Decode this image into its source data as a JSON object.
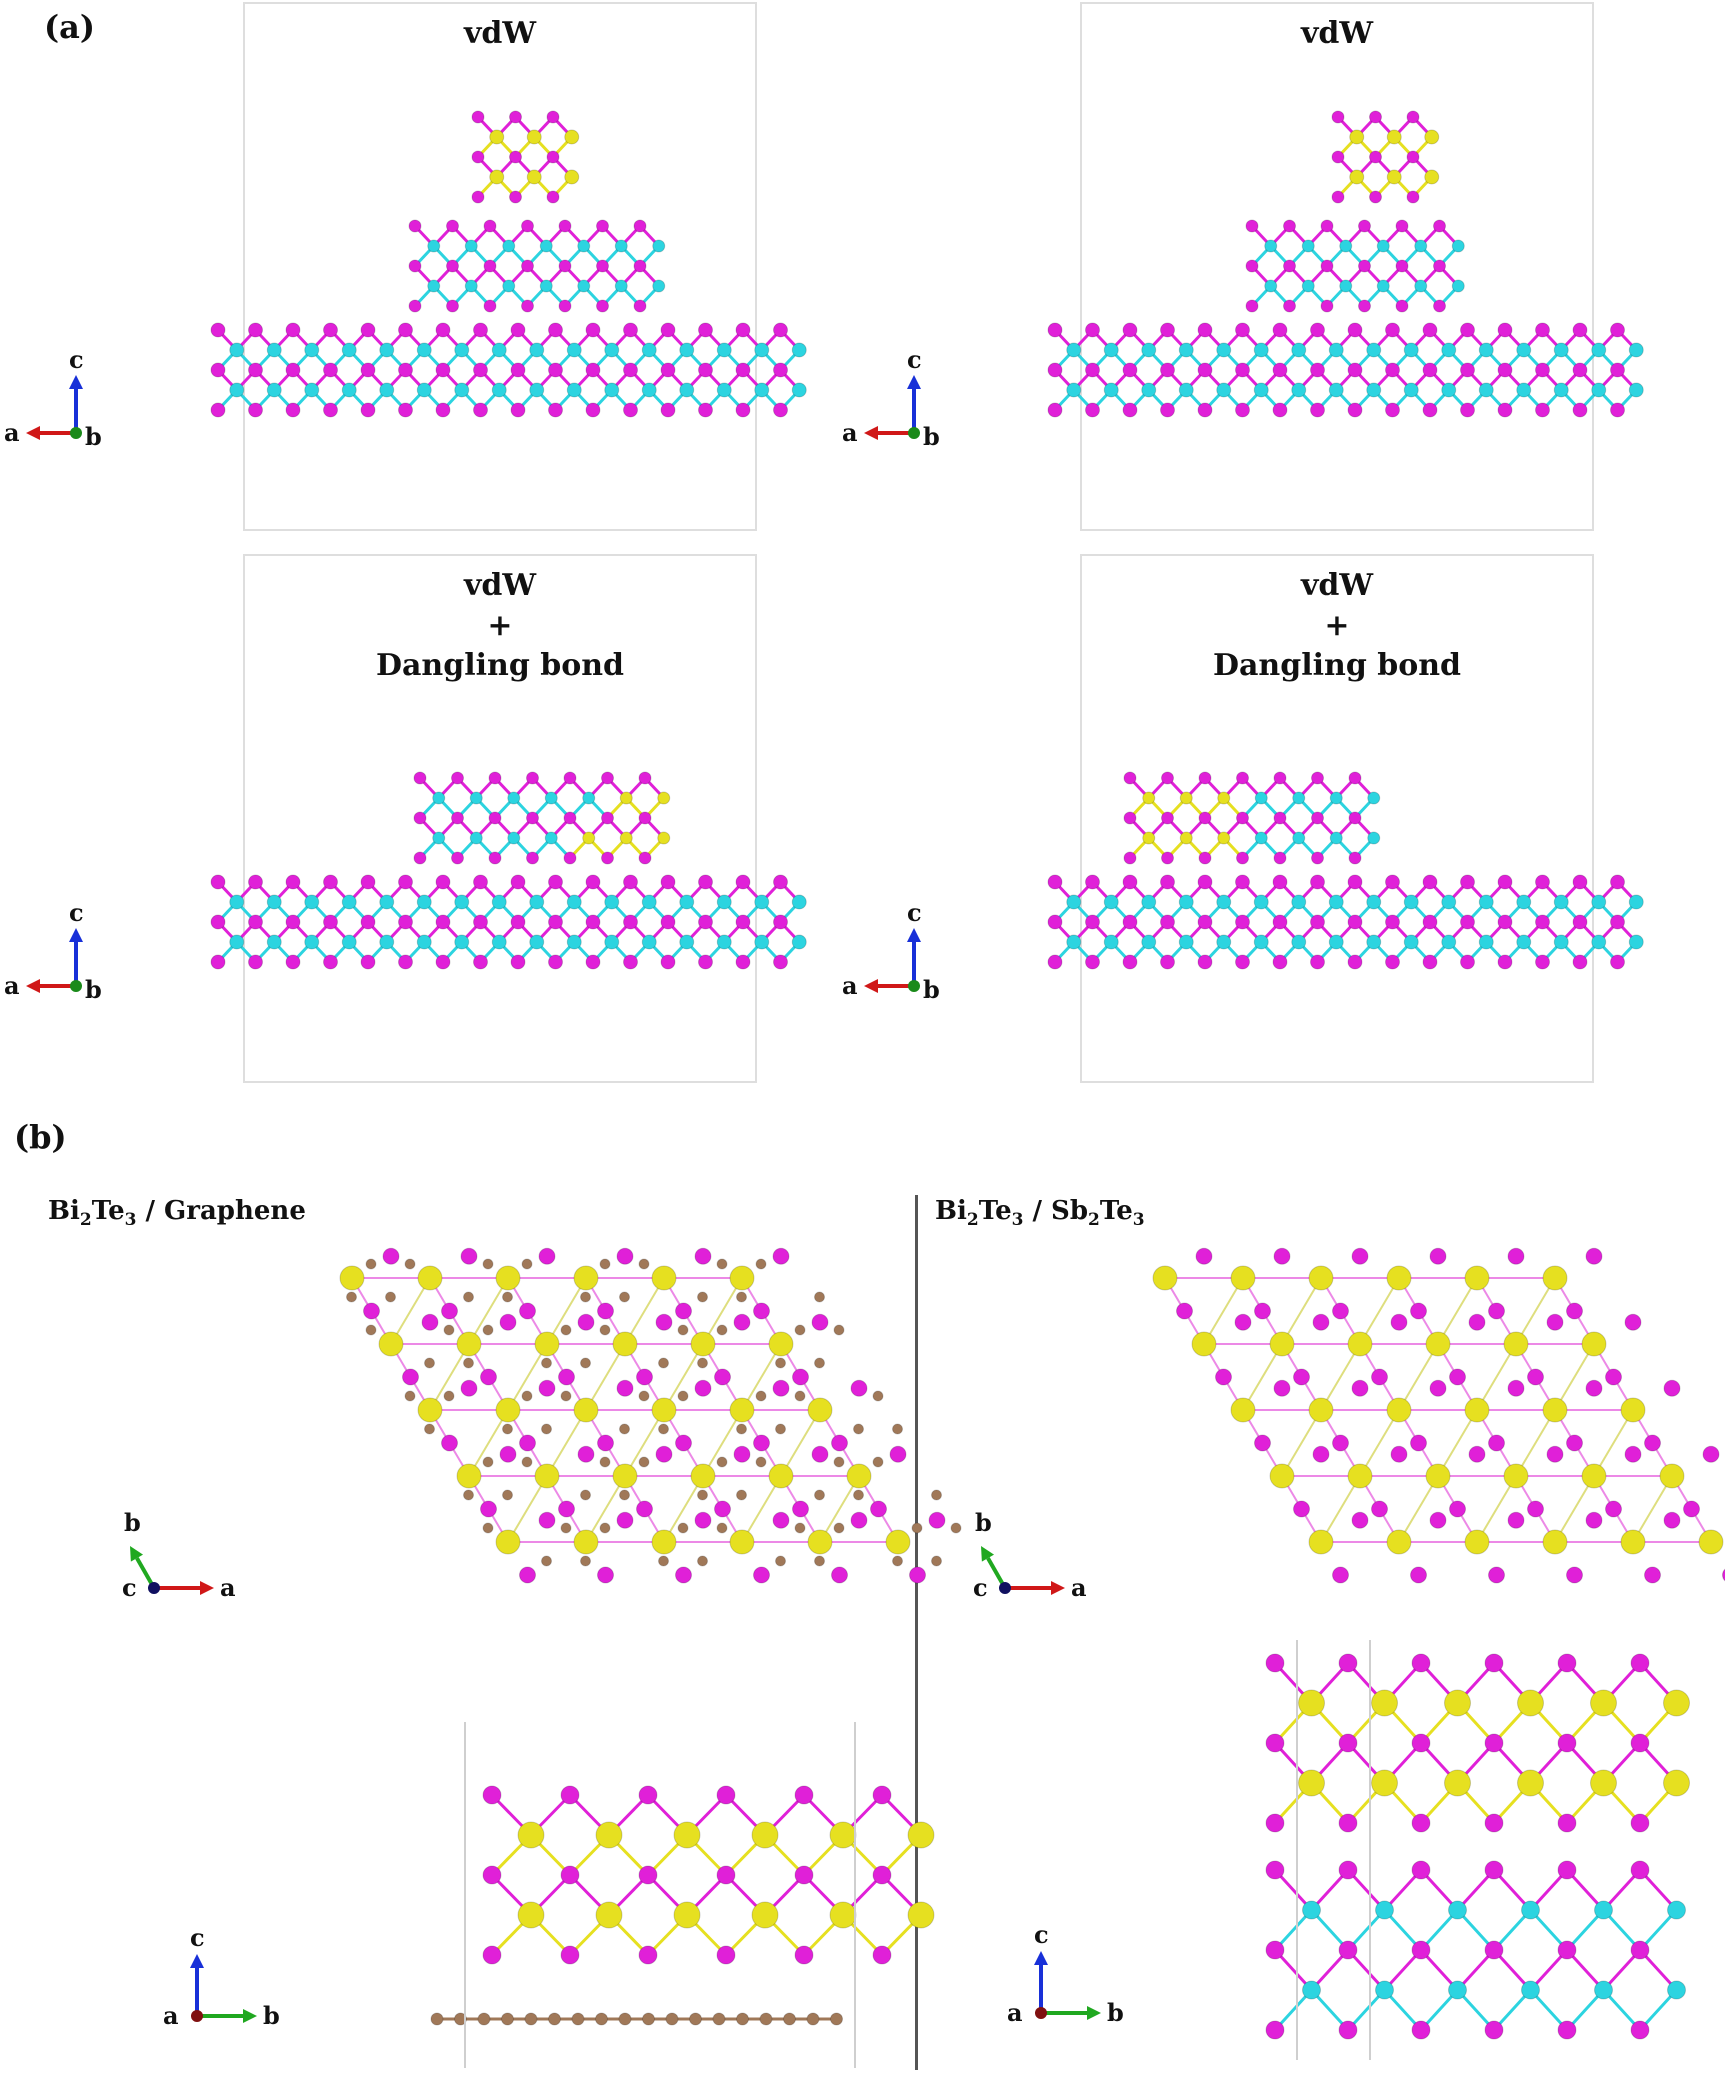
{
  "figure": {
    "panel_a_label": "(a)",
    "panel_b_label": "(b)",
    "boxes": [
      {
        "title": [
          "vdW"
        ]
      },
      {
        "title": [
          "vdW"
        ]
      },
      {
        "title": [
          "vdW",
          "+",
          "Dangling bond"
        ]
      },
      {
        "title": [
          "vdW",
          "+",
          "Dangling bond"
        ]
      }
    ],
    "b_left_title": {
      "pre": "Bi",
      "s1": "2",
      "mid": "Te",
      "s2": "3",
      "post": " / Graphene"
    },
    "b_right_title": {
      "pre": "Bi",
      "s1": "2",
      "mid": "Te",
      "s2": "3",
      "sep": " / Sb",
      "s3": "2",
      "mid2": "Te",
      "s4": "3"
    },
    "axes_labels": {
      "a": "a",
      "b": "b",
      "c": "c"
    },
    "colors": {
      "te": "#e020d8",
      "sb": "#2cd4e0",
      "bi": "#e6e020",
      "carbon": "#a07858",
      "axis_red": "#d01818",
      "axis_blue": "#1830d8",
      "axis_green": "#20a820",
      "axis_b_dot": "#1a8a1a",
      "axis_c_dot": "#101060",
      "axis_a_dot": "#801010"
    }
  }
}
